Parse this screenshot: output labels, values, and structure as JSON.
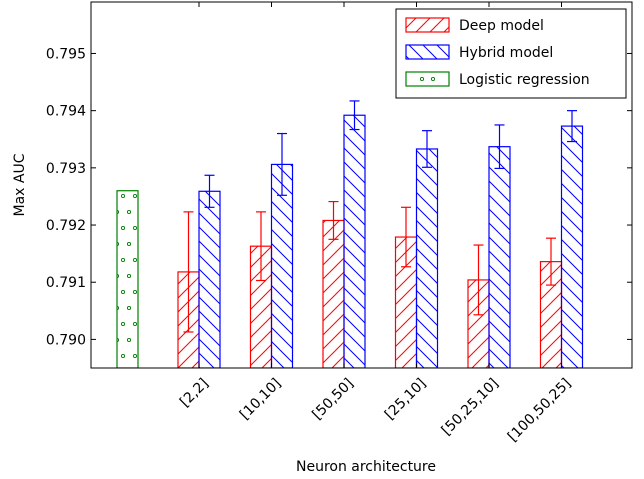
{
  "chart_data": {
    "type": "bar",
    "title": "",
    "xlabel": "Neuron architecture",
    "ylabel": "Max AUC",
    "ylim": [
      0.7895,
      0.7959
    ],
    "yticks": [
      "0.790",
      "0.791",
      "0.792",
      "0.793",
      "0.794",
      "0.795"
    ],
    "categories": [
      "[2,2]",
      "[10,10]",
      "[50,50]",
      "[25,10]",
      "[50,25,10]",
      "[100,50,25]"
    ],
    "grid": false,
    "legend_position": "top-right",
    "series": [
      {
        "name": "Deep model",
        "color": "#ff0000",
        "hatch": "forward-diagonal",
        "values": [
          0.79118,
          0.79163,
          0.79208,
          0.79179,
          0.79104,
          0.79136
        ],
        "errors": [
          0.00105,
          0.0006,
          0.00033,
          0.00052,
          0.00061,
          0.00041
        ]
      },
      {
        "name": "Hybrid model",
        "color": "#0000ff",
        "hatch": "back-diagonal",
        "values": [
          0.79259,
          0.79306,
          0.79392,
          0.79333,
          0.79337,
          0.79373
        ],
        "errors": [
          0.00028,
          0.00054,
          0.00025,
          0.00032,
          0.00038,
          0.00027
        ]
      }
    ],
    "baseline": {
      "name": "Logistic regression",
      "color": "#008000",
      "hatch": "dots",
      "value": 0.7926
    }
  }
}
